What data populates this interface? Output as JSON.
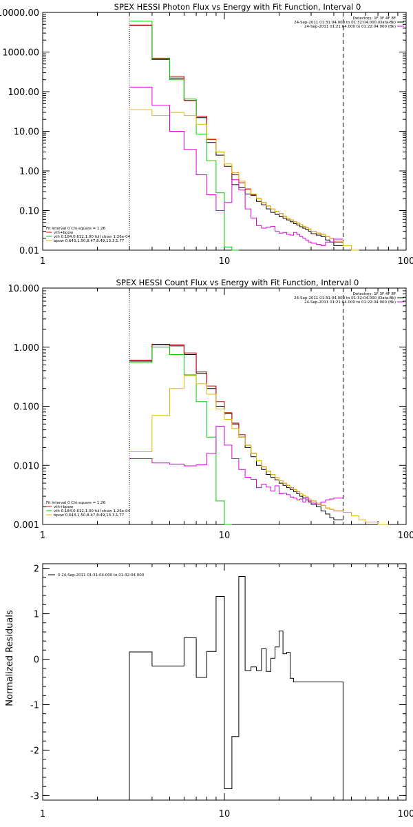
{
  "colors": {
    "data": "#000000",
    "total": "#cc0000",
    "vth": "#00cc00",
    "bpow": "#ddbb00",
    "bk": "#dd00dd"
  },
  "chart_data": [
    {
      "type": "line",
      "title": "SPEX HESSI Photon Flux vs Energy with Fit Function, Interval 0",
      "xscale": "log",
      "yscale": "log",
      "xlim": [
        1,
        100
      ],
      "ylim": [
        0.01,
        10000
      ],
      "xticks": [
        "1",
        "10",
        "100"
      ],
      "yticks": [
        "0.01",
        "0.10",
        "1.00",
        "10.00",
        "100.00",
        "1000.00",
        "10000.00"
      ],
      "legend_top_right": [
        "Detectors: 1F 3F 4F 8F",
        "24-Sep-2011 01:31:04.000 to 01:32:04.000 (Data-Bk)",
        "24-Sep-2011 01:21:04.000 to 01:22:04.000 (Bk)"
      ],
      "legend_bottom_left": [
        "Fit Interval 0   Chi-square = 1.26",
        "vth+bpow",
        "vth 0.184,0.612,1.00  full chian 1.26e-04",
        "bpow 0.643,1.50,8.47,8.49,13.3,1.77"
      ],
      "fit_range": [
        3,
        45
      ],
      "edges": [
        3,
        4,
        5,
        6,
        7,
        8,
        9,
        10,
        11,
        12,
        13,
        14,
        15,
        16,
        17,
        18,
        19,
        20,
        21,
        22,
        23,
        24,
        25,
        26,
        27,
        28,
        29,
        30,
        32,
        34,
        36,
        38,
        40,
        45,
        50,
        55
      ],
      "series": [
        {
          "name": "Data-Bk",
          "color": "#000000",
          "values": [
            4700,
            650,
            220,
            60,
            22,
            5.2,
            2.5,
            1.3,
            0.45,
            0.38,
            0.26,
            0.24,
            0.17,
            0.14,
            0.11,
            0.09,
            0.08,
            0.07,
            0.064,
            0.058,
            0.052,
            0.047,
            0.043,
            0.039,
            0.036,
            0.033,
            0.03,
            0.026,
            0.024,
            0.022,
            0.018,
            0.016,
            0.013
          ]
        },
        {
          "name": "vth+bpow",
          "color": "#cc0000",
          "values": [
            4800,
            700,
            240,
            60,
            24,
            6.2,
            3.0,
            1.3,
            0.8,
            0.5,
            0.34,
            0.25,
            0.2,
            0.16,
            0.13,
            0.11,
            0.095,
            0.085,
            0.072,
            0.064,
            0.058,
            0.052,
            0.048,
            0.044,
            0.04,
            0.037,
            0.034,
            0.03,
            0.027,
            0.025,
            0.022,
            0.02,
            0.016
          ]
        },
        {
          "name": "vth",
          "color": "#00cc00",
          "values": [
            6000,
            680,
            200,
            65,
            8.5,
            1.8,
            0.28,
            0.012,
            0.0001
          ]
        },
        {
          "name": "bpow",
          "color": "#ddbb00",
          "values": [
            35,
            25,
            30,
            25,
            15,
            6.5,
            3.0,
            1.5,
            0.9,
            0.55,
            0.36,
            0.26,
            0.2,
            0.16,
            0.13,
            0.11,
            0.095,
            0.085,
            0.072,
            0.064,
            0.058,
            0.052,
            0.048,
            0.044,
            0.04,
            0.037,
            0.034,
            0.03,
            0.027,
            0.025,
            0.022,
            0.02,
            0.017,
            0.013,
            0.01
          ]
        },
        {
          "name": "Bk",
          "color": "#dd00dd",
          "values": [
            130,
            45,
            10,
            3.5,
            0.8,
            0.25,
            0.1,
            0.16,
            0.6,
            0.33,
            0.11,
            0.065,
            0.042,
            0.036,
            0.038,
            0.04,
            0.03,
            0.027,
            0.028,
            0.025,
            0.024,
            0.028,
            0.025,
            0.022,
            0.02,
            0.018,
            0.016,
            0.015,
            0.014,
            0.013,
            0.016,
            0.016,
            0.019
          ]
        }
      ]
    },
    {
      "type": "line",
      "title": "SPEX HESSI Count Flux vs Energy with Fit Function, Interval 0",
      "xscale": "log",
      "yscale": "log",
      "xlim": [
        1,
        100
      ],
      "ylim": [
        0.001,
        10
      ],
      "xticks": [
        "1",
        "10",
        "100"
      ],
      "yticks": [
        "0.001",
        "0.010",
        "0.100",
        "1.000",
        "10.000"
      ],
      "legend_top_right": [
        "Detectors: 1F 3F 4F 8F",
        "24-Sep-2011 01:31:04.000 to 01:32:04.000 (Data-Bk)",
        "24-Sep-2011 01:21:04.000 to 01:22:04.000 (Bk)"
      ],
      "legend_bottom_left": [
        "Fit Interval 0   Chi-square = 1.26",
        "vth+bpow",
        "vth 0.184,0.612,1.00  full chian 1.26e-04",
        "bpow 0.643,1.50,8.47,8.49,13.3,1.77"
      ],
      "fit_range": [
        3,
        45
      ],
      "edges": [
        3,
        4,
        5,
        6,
        7,
        8,
        9,
        10,
        11,
        12,
        13,
        14,
        15,
        16,
        17,
        18,
        19,
        20,
        21,
        22,
        23,
        24,
        25,
        26,
        27,
        28,
        29,
        30,
        32,
        34,
        36,
        38,
        40,
        45,
        50,
        55,
        60,
        70,
        80
      ],
      "series": [
        {
          "name": "Data-Bk",
          "color": "#000000",
          "values": [
            0.58,
            1.1,
            1.05,
            0.75,
            0.36,
            0.2,
            0.1,
            0.075,
            0.05,
            0.03,
            0.02,
            0.014,
            0.01,
            0.0085,
            0.007,
            0.0063,
            0.0057,
            0.005,
            0.0046,
            0.0042,
            0.0039,
            0.0036,
            0.0033,
            0.003,
            0.0028,
            0.0026,
            0.0024,
            0.0022,
            0.002,
            0.0017,
            0.0015,
            0.0013,
            0.0012
          ]
        },
        {
          "name": "vth+bpow",
          "color": "#cc0000",
          "values": [
            0.6,
            1.12,
            1.1,
            0.8,
            0.38,
            0.22,
            0.12,
            0.078,
            0.052,
            0.033,
            0.022,
            0.016,
            0.012,
            0.0095,
            0.008,
            0.007,
            0.0062,
            0.0055,
            0.005,
            0.0046,
            0.0042,
            0.0039,
            0.0036,
            0.0033,
            0.0031,
            0.0029,
            0.0027,
            0.0025,
            0.0023,
            0.0021,
            0.0019,
            0.0018,
            0.0017
          ]
        },
        {
          "name": "vth",
          "color": "#00cc00",
          "values": [
            0.55,
            1.0,
            0.75,
            0.34,
            0.12,
            0.03,
            0.0025,
            0.00095
          ]
        },
        {
          "name": "bpow",
          "color": "#ddbb00",
          "values": [
            0.017,
            0.07,
            0.2,
            0.33,
            0.24,
            0.16,
            0.09,
            0.06,
            0.042,
            0.03,
            0.022,
            0.016,
            0.012,
            0.0095,
            0.008,
            0.007,
            0.0062,
            0.0055,
            0.005,
            0.0046,
            0.0042,
            0.0039,
            0.0036,
            0.0033,
            0.0031,
            0.0029,
            0.0027,
            0.0025,
            0.0023,
            0.0021,
            0.0019,
            0.0018,
            0.0017,
            0.0016,
            0.0014,
            0.0012,
            0.0011,
            0.001
          ]
        },
        {
          "name": "Bk",
          "color": "#dd00dd",
          "values": [
            0.013,
            0.011,
            0.0105,
            0.0098,
            0.0102,
            0.016,
            0.046,
            0.022,
            0.013,
            0.0085,
            0.0063,
            0.0058,
            0.0042,
            0.0048,
            0.0043,
            0.0037,
            0.0045,
            0.0033,
            0.0034,
            0.0032,
            0.0029,
            0.0028,
            0.0026,
            0.0027,
            0.0024,
            0.0028,
            0.0025,
            0.0023,
            0.0022,
            0.0024,
            0.0026,
            0.0027,
            0.0028
          ]
        }
      ]
    },
    {
      "type": "line",
      "title": "",
      "xscale": "log",
      "yscale": "linear",
      "xlim": [
        1,
        100
      ],
      "ylim": [
        -3.1,
        2.1
      ],
      "ylabel": "Normalized Residuals",
      "xticks": [
        "1",
        "10",
        "100"
      ],
      "yticks": [
        "-3",
        "-2",
        "-1",
        "0",
        "1",
        "2"
      ],
      "legend": "0  24-Sep-2011 01:31:04.000 to 01:32:04.000",
      "edges": [
        3,
        4,
        5,
        6,
        7,
        8,
        9,
        10,
        11,
        12,
        13,
        14,
        15,
        16,
        17,
        18,
        19,
        20,
        21,
        22,
        23,
        24,
        25,
        26,
        27,
        28,
        29,
        30,
        32,
        34,
        36,
        38,
        40,
        45
      ],
      "series": [
        {
          "name": "0  24-Sep-2011 01:31:04.000 to 01:32:04.000",
          "color": "#000000",
          "values": [
            0.16,
            -0.15,
            -0.15,
            0.47,
            -0.4,
            0.17,
            1.38,
            -2.85,
            -1.7,
            1.82,
            -0.25,
            -0.17,
            -0.25,
            0.23,
            -0.27,
            0.02,
            0.27,
            0.62,
            0.12,
            0.15,
            -0.42,
            -0.5,
            -0.5,
            -0.5,
            -0.5,
            -0.5,
            -0.5,
            -0.5,
            -0.5,
            -0.5,
            -0.5,
            -0.5,
            -0.5
          ]
        }
      ]
    }
  ]
}
